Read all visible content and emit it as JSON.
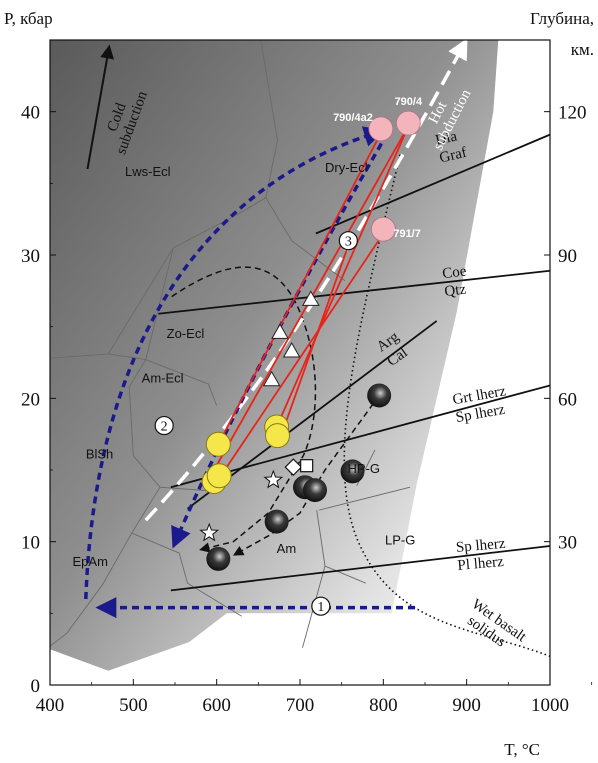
{
  "chart_data": {
    "type": "scatter",
    "title": "",
    "xlabel": "T, °C",
    "ylabel_left": "P, кбар",
    "ylabel_right_line1": "Глубина,",
    "ylabel_right_line2": "км.",
    "xlim": [
      400,
      1000
    ],
    "ylim": [
      0,
      45
    ],
    "xticks": [
      400,
      500,
      600,
      700,
      800,
      900,
      1000
    ],
    "yticks_left": [
      0,
      10,
      20,
      30,
      40
    ],
    "yticks_right": [
      {
        "label": "30",
        "p": 10
      },
      {
        "label": "60",
        "p": 20
      },
      {
        "label": "90",
        "p": 30
      },
      {
        "label": "120",
        "p": 40
      }
    ],
    "facies_labels": [
      {
        "text": "Lws-Ecl",
        "t": 490,
        "p": 35.5
      },
      {
        "text": "Dry-Ecl",
        "t": 730,
        "p": 35.8
      },
      {
        "text": "Zo-Ecl",
        "t": 540,
        "p": 24.2
      },
      {
        "text": "Am-Ecl",
        "t": 510,
        "p": 21.1
      },
      {
        "text": "BlSh",
        "t": 443,
        "p": 15.8
      },
      {
        "text": "EpAm",
        "t": 427,
        "p": 8.3
      },
      {
        "text": "Am",
        "t": 672,
        "p": 9.2
      },
      {
        "text": "HP-G",
        "t": 757,
        "p": 14.8
      },
      {
        "text": "LP-G",
        "t": 802,
        "p": 9.8
      }
    ],
    "reaction_lines": [
      {
        "upper": "Dia",
        "lower": "Graf",
        "t": 865,
        "p": 37.4,
        "angle": -13
      },
      {
        "upper": "Coe",
        "lower": "Qtz",
        "t": 872,
        "p": 28.1,
        "angle": -7
      },
      {
        "upper": "Arg",
        "lower": "Cal",
        "t": 800,
        "p": 23.0,
        "angle": -36
      },
      {
        "upper": "Grt lherz",
        "lower": "Sp lherz",
        "t": 885,
        "p": 19.3,
        "angle": -10
      },
      {
        "upper": "Sp lherz",
        "lower": "Pl lherz",
        "t": 888,
        "p": 9.0,
        "angle": -5
      }
    ],
    "arrow_labels": [
      {
        "text": "Cold subduction"
      },
      {
        "text": "Hot subduction"
      }
    ],
    "solidus_label_line1": "Wet basalt",
    "solidus_label_line2": "solidus",
    "pink_points": [
      {
        "t": 797,
        "p": 38.8,
        "label": "790/4a2"
      },
      {
        "t": 830,
        "p": 39.2,
        "label": "790/4"
      },
      {
        "t": 800,
        "p": 31.8,
        "label": "791/7"
      }
    ],
    "yellow_points": [
      {
        "t": 602,
        "p": 16.8
      },
      {
        "t": 672,
        "p": 18.0
      },
      {
        "t": 673,
        "p": 17.4
      },
      {
        "t": 597,
        "p": 14.2
      },
      {
        "t": 603,
        "p": 14.6
      }
    ],
    "triangle_points": [
      {
        "t": 713,
        "p": 26.9
      },
      {
        "t": 676,
        "p": 24.6
      },
      {
        "t": 690,
        "p": 23.3
      },
      {
        "t": 666,
        "p": 21.3
      }
    ],
    "dark_points": [
      {
        "t": 795,
        "p": 20.2
      },
      {
        "t": 763,
        "p": 14.9
      },
      {
        "t": 706,
        "p": 13.8
      },
      {
        "t": 718,
        "p": 13.6
      },
      {
        "t": 672,
        "p": 11.4
      },
      {
        "t": 602,
        "p": 8.8
      }
    ],
    "star_points": [
      {
        "t": 668,
        "p": 14.3
      },
      {
        "t": 591,
        "p": 10.6
      }
    ],
    "diamond_point": {
      "t": 692,
      "p": 15.2
    },
    "square_point": {
      "t": 708,
      "p": 15.3
    },
    "circled_numbers": [
      {
        "text": "1",
        "t": 725,
        "p": 5.5
      },
      {
        "text": "2",
        "t": 537,
        "p": 18.1
      },
      {
        "text": "3",
        "t": 758,
        "p": 31.0
      }
    ],
    "colors": {
      "blue_arrow": "#1a1a8c",
      "red_arrow": "#e8241a",
      "pink": "#f4b4bc",
      "yellow": "#f5e64a",
      "white_arrow": "#ffffff",
      "dark_point": "#1e1e1e"
    }
  }
}
